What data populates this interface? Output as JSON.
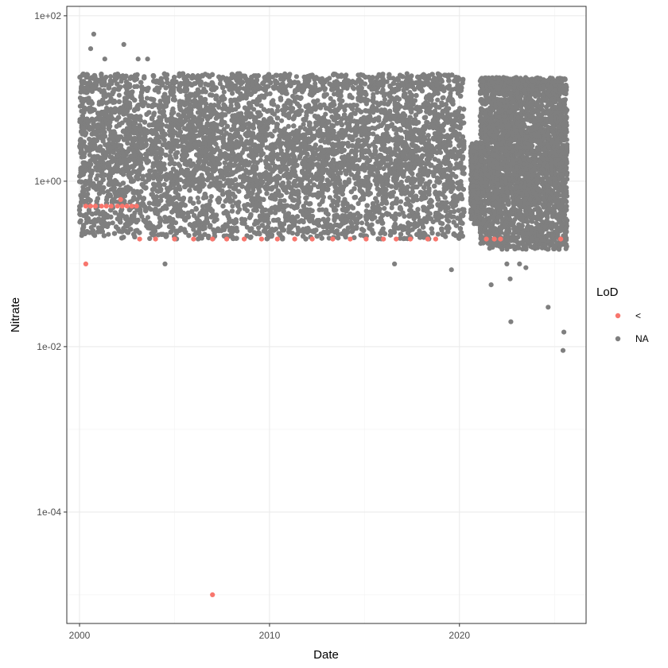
{
  "chart_data": {
    "type": "scatter",
    "xlabel": "Date",
    "ylabel": "Nitrate",
    "x_scale": "date",
    "y_scale": "log10",
    "xlim": [
      "1999-05-01",
      "2026-09-01"
    ],
    "ylim": [
      4.5e-06,
      130
    ],
    "x_ticks": [
      "2000-01-01",
      "2010-01-01",
      "2020-01-01"
    ],
    "x_tick_labels": [
      "2000",
      "2010",
      "2020"
    ],
    "y_ticks": [
      100,
      1,
      0.01,
      0.0001
    ],
    "y_tick_labels": [
      "1e+02",
      "1e+00",
      "1e-02",
      "1e-04"
    ],
    "grid": true,
    "legend": {
      "title": "LoD",
      "position": "right",
      "entries": [
        {
          "label": "<",
          "color": "#F8766D"
        },
        {
          "label": "NA",
          "color": "#7F7F7F"
        }
      ]
    },
    "series": [
      {
        "name": "<",
        "color": "#F8766D",
        "points": [
          [
            "2000-05-01",
            0.1
          ],
          [
            "2000-05-01",
            0.5
          ],
          [
            "2000-08-01",
            0.5
          ],
          [
            "2000-11-01",
            0.5
          ],
          [
            "2001-03-01",
            0.5
          ],
          [
            "2001-06-01",
            0.5
          ],
          [
            "2001-09-01",
            0.5
          ],
          [
            "2002-01-01",
            0.5
          ],
          [
            "2002-04-01",
            0.5
          ],
          [
            "2002-07-01",
            0.5
          ],
          [
            "2002-10-01",
            0.5
          ],
          [
            "2003-01-01",
            0.5
          ],
          [
            "2002-03-01",
            0.6
          ],
          [
            "2003-03-01",
            0.2
          ],
          [
            "2004-01-01",
            0.2
          ],
          [
            "2005-01-01",
            0.2
          ],
          [
            "2006-01-01",
            0.2
          ],
          [
            "2007-01-01",
            0.2
          ],
          [
            "2007-10-01",
            0.2
          ],
          [
            "2008-09-01",
            0.2
          ],
          [
            "2009-08-01",
            0.2
          ],
          [
            "2010-06-01",
            0.2
          ],
          [
            "2011-05-01",
            0.2
          ],
          [
            "2012-04-01",
            0.2
          ],
          [
            "2013-05-01",
            0.2
          ],
          [
            "2014-04-01",
            0.2
          ],
          [
            "2015-02-01",
            0.2
          ],
          [
            "2016-01-01",
            0.2
          ],
          [
            "2016-09-01",
            0.2
          ],
          [
            "2017-06-01",
            0.2
          ],
          [
            "2018-05-01",
            0.2
          ],
          [
            "2018-10-01",
            0.2
          ],
          [
            "2021-06-01",
            0.2
          ],
          [
            "2021-11-01",
            0.2
          ],
          [
            "2022-03-01",
            0.2
          ],
          [
            "2025-05-01",
            0.2
          ],
          [
            "2007-01-01",
            1e-05
          ]
        ]
      },
      {
        "name": "NA",
        "color": "#7F7F7F",
        "density_bands": [
          {
            "from": "2000-01-01",
            "to": "2020-03-31",
            "low": 0.2,
            "high": 20,
            "core_low": 0.5,
            "core_high": 10
          },
          {
            "from": "2020-08-01",
            "to": "2021-01-31",
            "low": 0.3,
            "high": 3,
            "core_low": 0.5,
            "core_high": 2
          },
          {
            "from": "2021-02-01",
            "to": "2025-09-01",
            "low": 0.15,
            "high": 18,
            "core_low": 0.4,
            "core_high": 10
          }
        ],
        "outliers": [
          [
            "2000-10-01",
            60
          ],
          [
            "2000-08-01",
            40
          ],
          [
            "2001-05-01",
            30
          ],
          [
            "2002-05-01",
            45
          ],
          [
            "2003-02-01",
            30
          ],
          [
            "2003-08-01",
            30
          ],
          [
            "2001-01-01",
            0.35
          ],
          [
            "2002-06-01",
            0.3
          ],
          [
            "2004-07-01",
            0.1
          ],
          [
            "2016-08-01",
            0.1
          ],
          [
            "2019-08-01",
            0.085
          ],
          [
            "2021-09-01",
            0.056
          ],
          [
            "2022-07-01",
            0.1
          ],
          [
            "2022-09-01",
            0.066
          ],
          [
            "2023-03-01",
            0.1
          ],
          [
            "2023-07-01",
            0.09
          ],
          [
            "2024-09-01",
            0.03
          ],
          [
            "2022-09-15",
            0.02
          ],
          [
            "2025-07-01",
            0.015
          ],
          [
            "2025-06-15",
            0.009
          ]
        ]
      }
    ]
  }
}
